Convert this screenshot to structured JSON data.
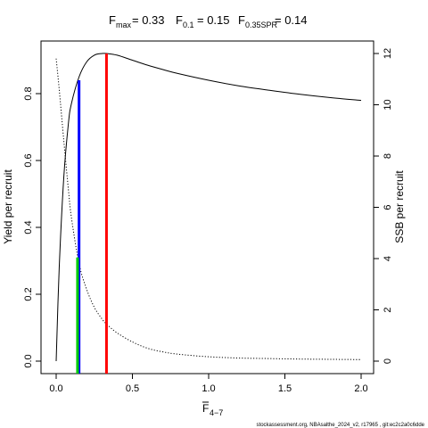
{
  "chart_data": {
    "type": "line",
    "title_parts": {
      "fmax_label": "F",
      "fmax_sub": "max",
      "fmax_value": "= 0.33",
      "f01_label": "F",
      "f01_sub": "0.1",
      "f01_value": "= 0.15",
      "f035_label": "F",
      "f035_sub": "0.35SPR",
      "f035_value": "= 0.14"
    },
    "xlabel": "F",
    "xlabel_sub": "4−7",
    "ylabel": "Yield per recruit",
    "y2label": "SSB per recruit",
    "xlim": [
      0,
      2
    ],
    "ylim": [
      0,
      0.92
    ],
    "y2lim": [
      0,
      12
    ],
    "x_ticks": [
      0,
      0.5,
      1,
      1.5,
      2
    ],
    "x_tick_labels": [
      "0.0",
      "0.5",
      "1.0",
      "1.5",
      "2.0"
    ],
    "y_ticks": [
      0,
      0.2,
      0.4,
      0.6,
      0.8
    ],
    "y_tick_labels": [
      "0.0",
      "0.2",
      "0.4",
      "0.6",
      "0.8"
    ],
    "y2_ticks": [
      0,
      2,
      4,
      6,
      8,
      10,
      12
    ],
    "y2_tick_labels": [
      "0",
      "2",
      "4",
      "6",
      "8",
      "10",
      "12"
    ],
    "grid": false,
    "series": [
      {
        "axis": "left",
        "style": "solid",
        "color": "#000000",
        "x": [
          0,
          0.02,
          0.05,
          0.08,
          0.1,
          0.15,
          0.2,
          0.25,
          0.3,
          0.33,
          0.4,
          0.5,
          0.6,
          0.7,
          0.8,
          1.0,
          1.2,
          1.4,
          1.6,
          1.8,
          2.0
        ],
        "y": [
          0.0,
          0.28,
          0.55,
          0.71,
          0.77,
          0.85,
          0.895,
          0.915,
          0.92,
          0.92,
          0.915,
          0.9,
          0.885,
          0.872,
          0.86,
          0.84,
          0.823,
          0.81,
          0.798,
          0.788,
          0.78
        ]
      },
      {
        "axis": "right",
        "style": "dotted",
        "color": "#000000",
        "x": [
          0,
          0.02,
          0.05,
          0.08,
          0.1,
          0.15,
          0.2,
          0.25,
          0.3,
          0.33,
          0.4,
          0.5,
          0.6,
          0.7,
          0.8,
          1.0,
          1.2,
          1.4,
          1.6,
          1.8,
          2.0
        ],
        "y": [
          11.8,
          10.6,
          8.6,
          6.7,
          5.6,
          3.8,
          2.8,
          2.1,
          1.65,
          1.45,
          1.1,
          0.75,
          0.5,
          0.36,
          0.27,
          0.17,
          0.12,
          0.1,
          0.08,
          0.07,
          0.06
        ]
      }
    ],
    "reference_lines": [
      {
        "name": "F0.1",
        "x": 0.15,
        "color": "#0000ff",
        "y_top": 0.84
      },
      {
        "name": "F0.35SPR",
        "x": 0.14,
        "color": "#00cc00",
        "y_top": 0.31
      },
      {
        "name": "Fmax",
        "x": 0.33,
        "color": "#ff0000",
        "y_top": 0.92
      }
    ],
    "footer": "stockassessment.org, NBAsalthe_2024_v2, r17965 , git:ec2c2a0c6dde"
  }
}
